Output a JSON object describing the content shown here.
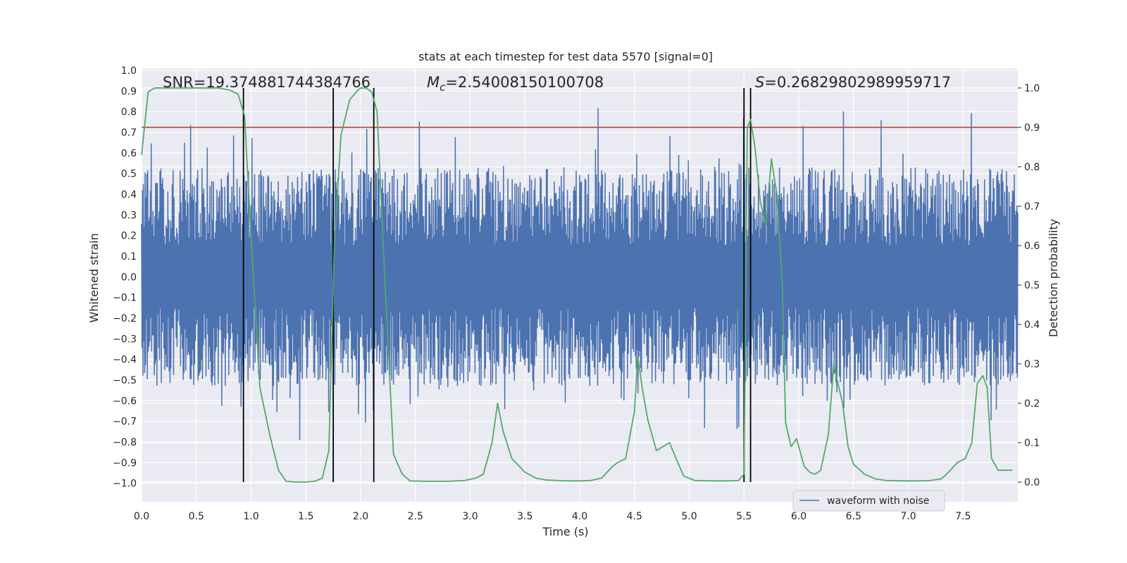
{
  "chart_data": {
    "type": "line",
    "title": "stats at each timestep for test data 5570 [signal=0]",
    "xlabel": "Time (s)",
    "ylabel_left": "Whitened strain",
    "ylabel_right": "Detection probability",
    "xlim": [
      0.0,
      8.0
    ],
    "ylim_left": [
      -1.09,
      1.01
    ],
    "ylim_right": [
      -0.05,
      1.05
    ],
    "x_ticks": [
      "0.0",
      "0.5",
      "1.0",
      "1.5",
      "2.0",
      "2.5",
      "3.0",
      "3.5",
      "4.0",
      "4.5",
      "5.0",
      "5.5",
      "6.0",
      "6.5",
      "7.0",
      "7.5"
    ],
    "y_left_ticks": [
      "1.0",
      "0.9",
      "0.8",
      "0.7",
      "0.6",
      "0.5",
      "0.4",
      "0.3",
      "0.2",
      "0.1",
      "0.0",
      "−0.1",
      "−0.2",
      "−0.3",
      "−0.4",
      "−0.5",
      "−0.6",
      "−0.7",
      "−0.8",
      "−0.9",
      "−1.0"
    ],
    "y_right_ticks": [
      "1.0",
      "0.9",
      "0.8",
      "0.7",
      "0.6",
      "0.5",
      "0.4",
      "0.3",
      "0.2",
      "0.1",
      "0.0"
    ],
    "grid": true,
    "legend": {
      "placement": "lower-center-right",
      "entries": [
        "waveform with noise"
      ]
    },
    "annotations": {
      "snr": "SNR=19.374881744384766",
      "mc_symbol": "M",
      "mc_sub": "c",
      "mc_value": "=2.54008150100708",
      "s_symbol": "S",
      "s_value": "=0.26829802989959717"
    },
    "threshold": {
      "value": 0.9,
      "axis": "right",
      "color": "#c44e52"
    },
    "vertical_lines": [
      0.93,
      1.75,
      2.12,
      5.5,
      5.56
    ],
    "series": [
      {
        "name": "waveform with noise",
        "axis": "left",
        "color": "#4c72b0",
        "style": "dense noise, amplitude mostly within ±0.55 with spikes to ~0.9"
      },
      {
        "axis": "right",
        "color": "#55a868",
        "x": [
          0.0,
          0.06,
          0.12,
          0.25,
          0.4,
          0.55,
          0.7,
          0.8,
          0.88,
          0.94,
          1.0,
          1.08,
          1.17,
          1.25,
          1.32,
          1.4,
          1.5,
          1.58,
          1.65,
          1.71,
          1.76,
          1.82,
          1.9,
          1.96,
          2.0,
          2.05,
          2.1,
          2.15,
          2.22,
          2.3,
          2.38,
          2.45,
          2.6,
          2.8,
          2.95,
          3.05,
          3.12,
          3.2,
          3.25,
          3.3,
          3.38,
          3.5,
          3.6,
          3.7,
          3.8,
          3.9,
          4.0,
          4.1,
          4.2,
          4.3,
          4.35,
          4.42,
          4.5,
          4.53,
          4.57,
          4.62,
          4.7,
          4.76,
          4.82,
          4.88,
          4.95,
          5.05,
          5.2,
          5.35,
          5.45,
          5.5,
          5.53,
          5.56,
          5.6,
          5.65,
          5.7,
          5.75,
          5.8,
          5.85,
          5.88,
          5.93,
          5.98,
          6.05,
          6.1,
          6.15,
          6.2,
          6.27,
          6.32,
          6.35,
          6.4,
          6.45,
          6.5,
          6.6,
          6.7,
          6.8,
          6.95,
          7.1,
          7.2,
          7.3,
          7.35,
          7.45,
          7.52,
          7.58,
          7.63,
          7.68,
          7.72,
          7.76,
          7.82,
          7.9,
          7.95
        ],
        "y": [
          0.83,
          0.99,
          1.0,
          1.0,
          1.0,
          1.0,
          1.0,
          0.995,
          0.985,
          0.93,
          0.62,
          0.24,
          0.12,
          0.03,
          0.002,
          0.0,
          0.0,
          0.002,
          0.01,
          0.08,
          0.6,
          0.88,
          0.97,
          0.99,
          1.0,
          1.0,
          0.99,
          0.94,
          0.52,
          0.07,
          0.02,
          0.003,
          0.002,
          0.002,
          0.004,
          0.01,
          0.02,
          0.1,
          0.2,
          0.13,
          0.06,
          0.025,
          0.01,
          0.005,
          0.004,
          0.003,
          0.003,
          0.004,
          0.01,
          0.04,
          0.05,
          0.06,
          0.18,
          0.32,
          0.24,
          0.16,
          0.08,
          0.09,
          0.1,
          0.06,
          0.015,
          0.004,
          0.003,
          0.003,
          0.004,
          0.02,
          0.9,
          0.92,
          0.85,
          0.71,
          0.65,
          0.82,
          0.73,
          0.5,
          0.15,
          0.09,
          0.11,
          0.04,
          0.025,
          0.02,
          0.03,
          0.12,
          0.3,
          0.26,
          0.2,
          0.09,
          0.045,
          0.02,
          0.008,
          0.004,
          0.003,
          0.003,
          0.004,
          0.008,
          0.02,
          0.05,
          0.06,
          0.1,
          0.25,
          0.27,
          0.24,
          0.06,
          0.03,
          0.03,
          0.03
        ]
      }
    ]
  }
}
